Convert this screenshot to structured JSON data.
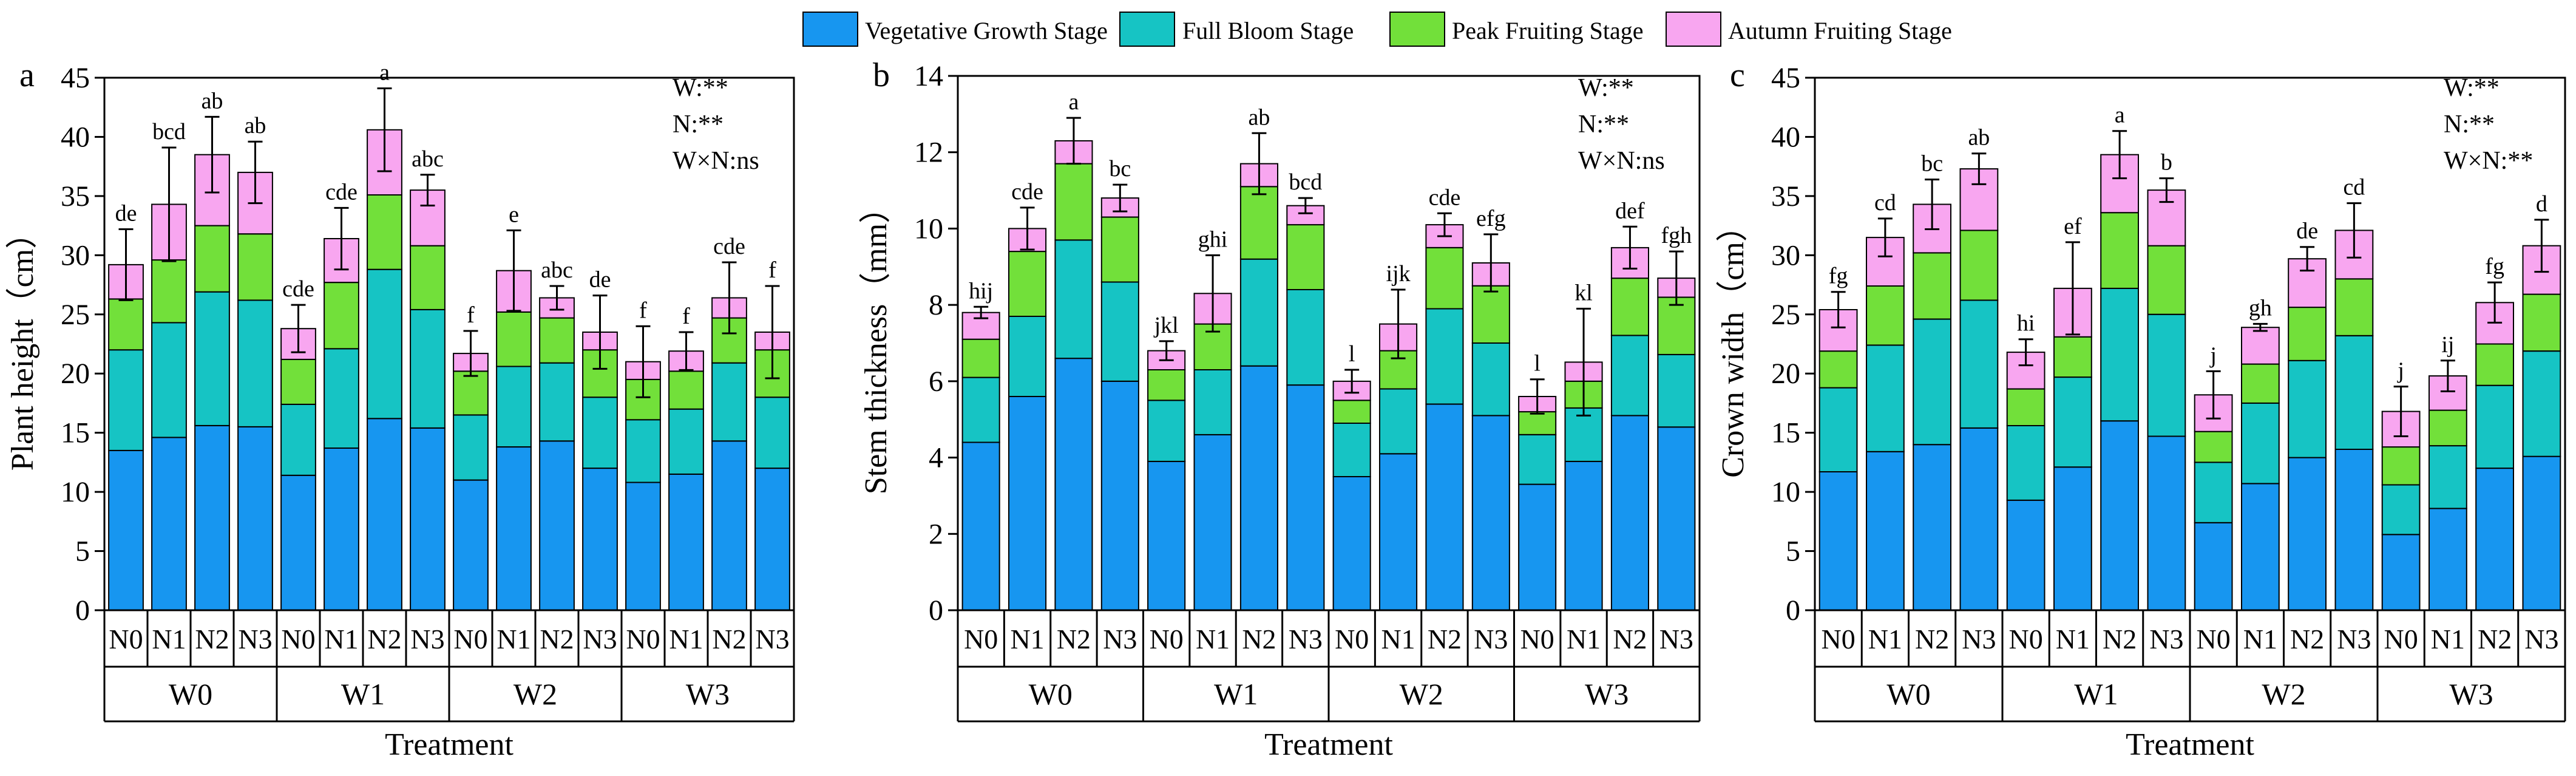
{
  "legend": [
    {
      "name": "Vegetative Growth Stage",
      "color": "#1796f0"
    },
    {
      "name": "Full Bloom Stage",
      "color": "#16c4c4"
    },
    {
      "name": "Peak Fruiting Stage",
      "color": "#72e03a"
    },
    {
      "name": "Autumn Fruiting Stage",
      "color": "#f8a6f0"
    }
  ],
  "chart_data": [
    {
      "type": "bar",
      "stacked": true,
      "panel_label": "a",
      "ylabel": "Plant height（cm）",
      "xlabel": "Treatment",
      "ylim": [
        0,
        45
      ],
      "yticks": [
        0,
        5,
        10,
        15,
        20,
        25,
        30,
        35,
        40,
        45
      ],
      "groups": [
        "W0",
        "W1",
        "W2",
        "W3"
      ],
      "subcategories": [
        "N0",
        "N1",
        "N2",
        "N3"
      ],
      "significance_text": [
        "W:**",
        "N:**",
        "W×N:ns"
      ],
      "series": [
        {
          "name": "Vegetative Growth Stage",
          "values": [
            13.5,
            14.6,
            15.6,
            15.5,
            11.4,
            13.7,
            16.2,
            15.4,
            11.0,
            13.8,
            14.3,
            12.0,
            10.8,
            11.5,
            14.3,
            12.0
          ]
        },
        {
          "name": "Full Bloom Stage",
          "values": [
            8.5,
            9.7,
            11.3,
            10.7,
            6.0,
            8.4,
            12.6,
            10.0,
            5.5,
            6.8,
            6.6,
            6.0,
            5.3,
            5.5,
            6.6,
            6.0
          ]
        },
        {
          "name": "Peak Fruiting Stage",
          "values": [
            4.3,
            5.3,
            5.6,
            5.6,
            3.8,
            5.6,
            6.3,
            5.4,
            3.7,
            4.6,
            3.8,
            4.0,
            3.4,
            3.2,
            3.8,
            4.0
          ]
        },
        {
          "name": "Autumn Fruiting Stage",
          "values": [
            2.9,
            4.7,
            6.0,
            5.2,
            2.6,
            3.7,
            5.5,
            4.7,
            1.5,
            3.5,
            1.7,
            1.5,
            1.5,
            1.7,
            1.7,
            1.5
          ]
        }
      ],
      "errors": [
        3.0,
        4.8,
        3.2,
        2.6,
        2.0,
        2.6,
        3.5,
        1.3,
        1.9,
        3.4,
        1.0,
        3.1,
        3.0,
        1.6,
        3.0,
        3.9
      ],
      "letters": [
        "de",
        "bcd",
        "ab",
        "ab",
        "cde",
        "cde",
        "a",
        "abc",
        "f",
        "e",
        "abc",
        "de",
        "f",
        "f",
        "cde",
        "f"
      ]
    },
    {
      "type": "bar",
      "stacked": true,
      "panel_label": "b",
      "ylabel": "Stem thickness（mm）",
      "xlabel": "Treatment",
      "ylim": [
        0,
        14
      ],
      "yticks": [
        0,
        2,
        4,
        6,
        8,
        10,
        12,
        14
      ],
      "groups": [
        "W0",
        "W1",
        "W2",
        "W3"
      ],
      "subcategories": [
        "N0",
        "N1",
        "N2",
        "N3"
      ],
      "significance_text": [
        "W:**",
        "N:**",
        "W×N:ns"
      ],
      "series": [
        {
          "name": "Vegetative Growth Stage",
          "values": [
            4.4,
            5.6,
            6.6,
            6.0,
            3.9,
            4.6,
            6.4,
            5.9,
            3.5,
            4.1,
            5.4,
            5.1,
            3.3,
            3.9,
            5.1,
            4.8
          ]
        },
        {
          "name": "Full Bloom Stage",
          "values": [
            1.7,
            2.1,
            3.1,
            2.6,
            1.6,
            1.7,
            2.8,
            2.5,
            1.4,
            1.7,
            2.5,
            1.9,
            1.3,
            1.4,
            2.1,
            1.9
          ]
        },
        {
          "name": "Peak Fruiting Stage",
          "values": [
            1.0,
            1.7,
            2.0,
            1.7,
            0.8,
            1.2,
            1.9,
            1.7,
            0.6,
            1.0,
            1.6,
            1.5,
            0.6,
            0.7,
            1.5,
            1.5
          ]
        },
        {
          "name": "Autumn Fruiting Stage",
          "values": [
            0.7,
            0.6,
            0.6,
            0.5,
            0.5,
            0.8,
            0.6,
            0.5,
            0.5,
            0.7,
            0.6,
            0.6,
            0.4,
            0.5,
            0.8,
            0.5
          ]
        }
      ],
      "errors": [
        0.15,
        0.55,
        0.6,
        0.35,
        0.25,
        1.0,
        0.8,
        0.2,
        0.3,
        0.9,
        0.3,
        0.75,
        0.45,
        1.4,
        0.55,
        0.7
      ],
      "letters": [
        "hij",
        "cde",
        "a",
        "bc",
        "jkl",
        "ghi",
        "ab",
        "bcd",
        "l",
        "ijk",
        "cde",
        "efg",
        "l",
        "kl",
        "def",
        "fgh"
      ]
    },
    {
      "type": "bar",
      "stacked": true,
      "panel_label": "c",
      "ylabel": "Crown width（cm）",
      "xlabel": "Treatment",
      "ylim": [
        0,
        45
      ],
      "yticks": [
        0,
        5,
        10,
        15,
        20,
        25,
        30,
        35,
        40,
        45
      ],
      "groups": [
        "W0",
        "W1",
        "W2",
        "W3"
      ],
      "subcategories": [
        "N0",
        "N1",
        "N2",
        "N3"
      ],
      "significance_text": [
        "W:**",
        "N:**",
        "W×N:**"
      ],
      "series": [
        {
          "name": "Vegetative Growth Stage",
          "values": [
            11.7,
            13.4,
            14.0,
            15.4,
            9.3,
            12.1,
            16.0,
            14.7,
            7.4,
            10.7,
            12.9,
            13.6,
            6.4,
            8.6,
            12.0,
            13.0
          ]
        },
        {
          "name": "Full Bloom Stage",
          "values": [
            7.1,
            9.0,
            10.6,
            10.8,
            6.3,
            7.6,
            11.2,
            10.3,
            5.1,
            6.8,
            8.2,
            9.6,
            4.2,
            5.3,
            7.0,
            8.9
          ]
        },
        {
          "name": "Peak Fruiting Stage",
          "values": [
            3.1,
            5.0,
            5.6,
            5.9,
            3.1,
            3.4,
            6.4,
            5.8,
            2.6,
            3.3,
            4.5,
            4.8,
            3.2,
            3.0,
            3.5,
            4.8
          ]
        },
        {
          "name": "Autumn Fruiting Stage",
          "values": [
            3.5,
            4.1,
            4.1,
            5.2,
            3.1,
            4.1,
            4.9,
            4.7,
            3.1,
            3.1,
            4.1,
            4.1,
            3.0,
            2.9,
            3.5,
            4.1
          ]
        }
      ],
      "errors": [
        1.5,
        1.6,
        2.1,
        1.3,
        1.1,
        3.9,
        2.0,
        1.0,
        2.0,
        0.3,
        1.0,
        2.3,
        2.1,
        1.3,
        1.7,
        2.2
      ],
      "letters": [
        "fg",
        "cd",
        "bc",
        "ab",
        "hi",
        "ef",
        "a",
        "b",
        "j",
        "gh",
        "de",
        "cd",
        "j",
        "ij",
        "fg",
        "d"
      ]
    }
  ]
}
